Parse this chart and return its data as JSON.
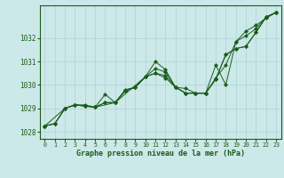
{
  "xlabel": "Graphe pression niveau de la mer (hPa)",
  "background_color": "#cce8e8",
  "grid_color": "#aad4d4",
  "line_color": "#1a5c1a",
  "xlim": [
    -0.5,
    23.5
  ],
  "ylim": [
    1027.7,
    1033.4
  ],
  "yticks": [
    1028,
    1029,
    1030,
    1031,
    1032
  ],
  "xticks": [
    0,
    1,
    2,
    3,
    4,
    5,
    6,
    7,
    8,
    9,
    10,
    11,
    12,
    13,
    14,
    15,
    16,
    17,
    18,
    19,
    20,
    21,
    22,
    23
  ],
  "series": [
    {
      "x": [
        0,
        1,
        2,
        3,
        4,
        5,
        6,
        7,
        8,
        9,
        10,
        11,
        12,
        13,
        14,
        15,
        16,
        17,
        18,
        19,
        20,
        21,
        22,
        23
      ],
      "y": [
        1028.25,
        1028.35,
        1029.0,
        1029.15,
        1029.15,
        1029.05,
        1029.25,
        1029.25,
        1029.75,
        1029.9,
        1030.35,
        1031.0,
        1030.65,
        1029.9,
        1029.85,
        1029.65,
        1029.65,
        1030.3,
        1030.85,
        1031.85,
        1032.3,
        1032.55,
        1032.85,
        1033.1
      ]
    },
    {
      "x": [
        0,
        1,
        2,
        3,
        4,
        5,
        6,
        7,
        8,
        9,
        10,
        11,
        12,
        13,
        14,
        15,
        16,
        17,
        18,
        19,
        20,
        21,
        22,
        23
      ],
      "y": [
        1028.25,
        1028.35,
        1029.0,
        1029.15,
        1029.1,
        1029.05,
        1029.6,
        1029.25,
        1029.8,
        1029.9,
        1030.35,
        1030.5,
        1030.4,
        1029.9,
        1029.65,
        1029.65,
        1029.65,
        1030.25,
        1031.3,
        1031.55,
        1031.65,
        1032.25,
        1032.9,
        1033.1
      ]
    },
    {
      "x": [
        0,
        1,
        2,
        3,
        4,
        5,
        6,
        7,
        8,
        9,
        10,
        11,
        12,
        13,
        14,
        15,
        16,
        17,
        18,
        19,
        20,
        21,
        22,
        23
      ],
      "y": [
        1028.25,
        1028.35,
        1029.0,
        1029.15,
        1029.1,
        1029.05,
        1029.25,
        1029.25,
        1029.75,
        1029.9,
        1030.35,
        1030.5,
        1030.3,
        1029.9,
        1029.65,
        1029.65,
        1029.65,
        1030.25,
        1031.3,
        1031.55,
        1031.65,
        1032.25,
        1032.9,
        1033.1
      ]
    },
    {
      "x": [
        0,
        2,
        3,
        4,
        5,
        7,
        10,
        11,
        12,
        13,
        14,
        15,
        16,
        17,
        18,
        19,
        20,
        21,
        22,
        23
      ],
      "y": [
        1028.25,
        1029.0,
        1029.15,
        1029.1,
        1029.05,
        1029.25,
        1030.35,
        1030.7,
        1030.55,
        1029.9,
        1029.65,
        1029.65,
        1029.65,
        1030.85,
        1030.0,
        1031.85,
        1032.1,
        1032.4,
        1032.9,
        1033.1
      ]
    }
  ]
}
